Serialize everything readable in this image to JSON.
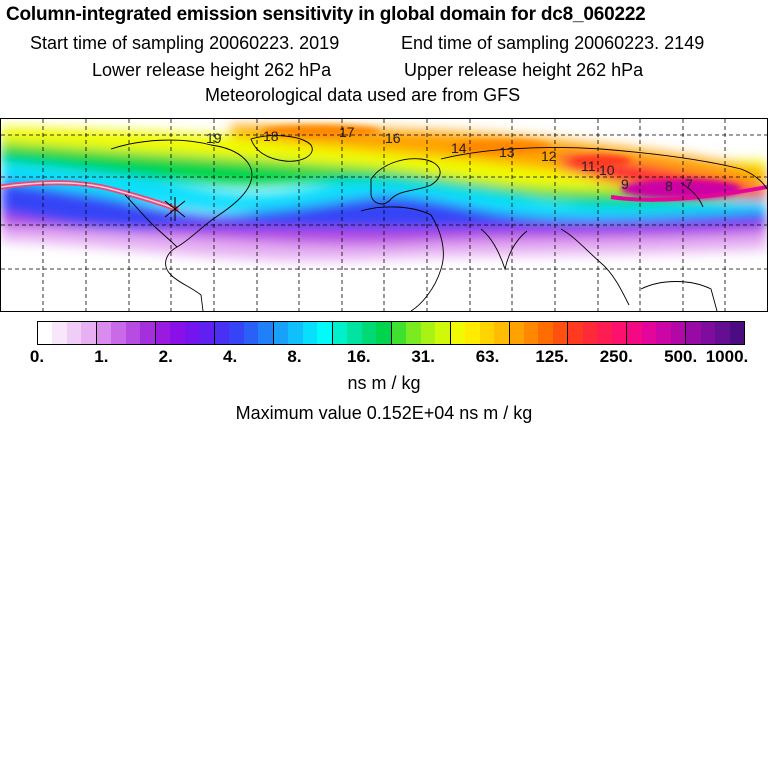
{
  "header": {
    "title": "Column-integrated emission sensitivity in global domain for dc8_060222",
    "start_time": "Start time of sampling 20060223.  2019",
    "end_time": "End time of sampling 20060223.  2149",
    "lower_height": "Lower release height  262 hPa",
    "upper_height": "Upper release height  262 hPa",
    "met_data": "Meteorological data used are from GFS"
  },
  "map": {
    "contour_labels": [
      "19",
      "18",
      "17",
      "16",
      "14",
      "13",
      "12",
      "11",
      "10",
      "9",
      "8",
      "7"
    ],
    "track_color": "#e8487a"
  },
  "colorbar": {
    "ticks": [
      "0.",
      "1.",
      "2.",
      "4.",
      "8.",
      "16.",
      "31.",
      "63.",
      "125.",
      "250.",
      "500.",
      "1000."
    ],
    "colors": [
      "#ffffff",
      "#f8e6fb",
      "#f0cdf7",
      "#e6b0f3",
      "#d98cee",
      "#c96ae8",
      "#b74be2",
      "#a52fdc",
      "#9a1adf",
      "#8a10e8",
      "#7614ef",
      "#6020f2",
      "#4a30f4",
      "#3444f6",
      "#2a60f8",
      "#2080fa",
      "#18a0fb",
      "#10c0fc",
      "#08dffd",
      "#00fbf8",
      "#00f0cc",
      "#00e4a0",
      "#00da74",
      "#00d44c",
      "#40e030",
      "#7aeb20",
      "#a8f214",
      "#cff80a",
      "#f0fb02",
      "#ffec00",
      "#ffd400",
      "#ffbc00",
      "#ffa200",
      "#ff8800",
      "#ff6c00",
      "#ff5010",
      "#ff3a20",
      "#ff2a38",
      "#ff1c52",
      "#ff106c",
      "#f40884",
      "#e4069a",
      "#cc06a4",
      "#b208a8",
      "#980aa6",
      "#7e0c9e",
      "#640e92",
      "#4a0c80"
    ],
    "unit": "ns m / kg",
    "max_value": "Maximum value  0.152E+04 ns m / kg"
  }
}
